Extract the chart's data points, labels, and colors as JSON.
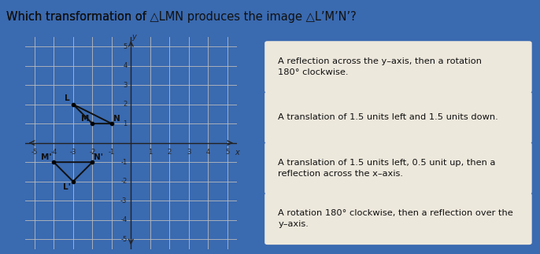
{
  "title_plain": "Which transformation of ",
  "title_tri1": "△LMN",
  "title_mid": " produces the image ",
  "title_tri2": "△L’M’N’",
  "title_end": "?",
  "header_bg": "#c5d8ec",
  "main_bg": "#3a6ab0",
  "graph_bg": "#f2ede4",
  "answer_bg": "#ede8dc",
  "triangle_LMN": {
    "L": [
      -3,
      2
    ],
    "M": [
      -2,
      1
    ],
    "N": [
      -1,
      1
    ]
  },
  "triangle_LpMpNp": {
    "Lp": [
      -3,
      -2
    ],
    "Mp": [
      -4,
      -1
    ],
    "Np": [
      -2,
      -1
    ]
  },
  "xlim": [
    -5.5,
    5.5
  ],
  "ylim": [
    -5.5,
    5.5
  ],
  "xticks": [
    -5,
    -4,
    -3,
    -2,
    -1,
    0,
    1,
    2,
    3,
    4,
    5
  ],
  "yticks": [
    -5,
    -4,
    -3,
    -2,
    -1,
    0,
    1,
    2,
    3,
    4,
    5
  ],
  "grid_color": "#bbbbbb",
  "axis_color": "#222222",
  "triangle_color": "#111111",
  "answers": [
    "A reflection across the y–axis, then a rotation\n180° clockwise.",
    "A translation of 1.5 units left and 1.5 units down.",
    "A translation of 1.5 units left, 0.5 unit up, then a\nreflection across the x–axis.",
    "A rotation 180° clockwise, then a reflection over the\ny–axis."
  ]
}
